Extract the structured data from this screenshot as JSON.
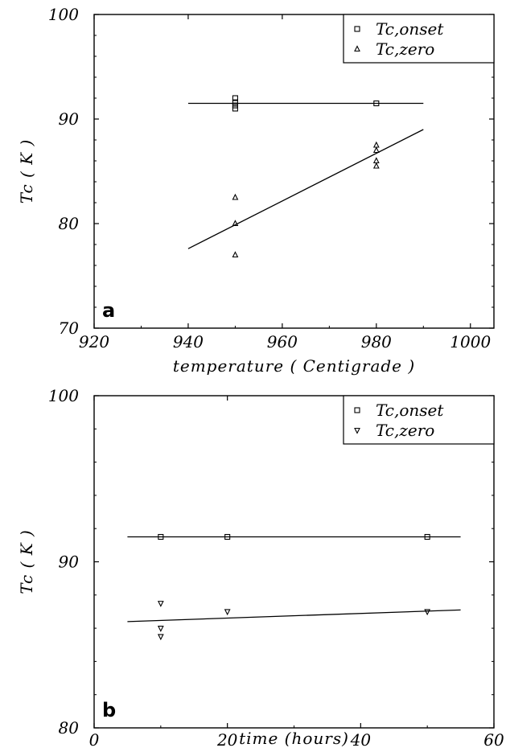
{
  "chart_data": [
    {
      "type": "scatter",
      "panel_label": "a",
      "xlabel": "temperature ( Centigrade )",
      "ylabel": "Tc ( K )",
      "xlim": [
        920,
        1005
      ],
      "ylim": [
        70,
        100
      ],
      "xticks": [
        920,
        940,
        960,
        980,
        1000
      ],
      "yticks": [
        70,
        80,
        90,
        100
      ],
      "legend_position": "top-right",
      "series": [
        {
          "name": "Tc,onset",
          "marker": "square",
          "points": [
            [
              950,
              92.0
            ],
            [
              950,
              91.6
            ],
            [
              950,
              91.3
            ],
            [
              950,
              91.0
            ],
            [
              980,
              91.5
            ]
          ],
          "fit": [
            [
              940,
              91.5
            ],
            [
              990,
              91.5
            ]
          ]
        },
        {
          "name": "Tc,zero",
          "marker": "triangle-up",
          "points": [
            [
              950,
              82.5
            ],
            [
              950,
              80.0
            ],
            [
              950,
              77.0
            ],
            [
              980,
              87.5
            ],
            [
              980,
              87.0
            ],
            [
              980,
              86.0
            ],
            [
              980,
              85.5
            ]
          ],
          "fit": [
            [
              940,
              77.6
            ],
            [
              990,
              89.0
            ]
          ]
        }
      ]
    },
    {
      "type": "scatter",
      "panel_label": "b",
      "xlabel": "time (hours)",
      "ylabel": "Tc ( K )",
      "xlim": [
        0,
        60
      ],
      "ylim": [
        80,
        100
      ],
      "xticks": [
        0,
        20,
        40,
        60
      ],
      "yticks": [
        80,
        90,
        100
      ],
      "legend_position": "top-right",
      "series": [
        {
          "name": "Tc,onset",
          "marker": "square",
          "points": [
            [
              10,
              91.5
            ],
            [
              20,
              91.5
            ],
            [
              50,
              91.5
            ]
          ],
          "fit": [
            [
              5,
              91.5
            ],
            [
              55,
              91.5
            ]
          ]
        },
        {
          "name": "Tc,zero",
          "marker": "triangle-down",
          "points": [
            [
              10,
              87.5
            ],
            [
              10,
              86.0
            ],
            [
              10,
              85.5
            ],
            [
              20,
              87.0
            ],
            [
              50,
              87.0
            ]
          ],
          "fit": [
            [
              5,
              86.4
            ],
            [
              55,
              87.1
            ]
          ]
        }
      ]
    }
  ]
}
